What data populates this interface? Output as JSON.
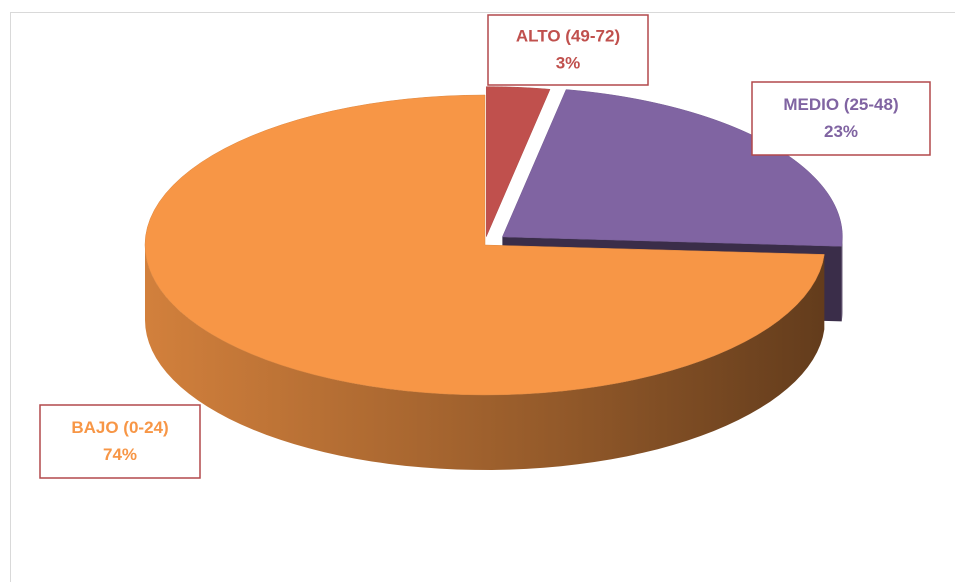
{
  "chart_data": {
    "type": "pie",
    "categories": [
      "ALTO (49-72)",
      "MEDIO (25-48)",
      "BAJO (0-24)"
    ],
    "values": [
      3,
      23,
      74
    ],
    "value_labels": [
      "3%",
      "23%",
      "74%"
    ],
    "colors": [
      "#c0504d",
      "#8064a2",
      "#f79646"
    ]
  }
}
